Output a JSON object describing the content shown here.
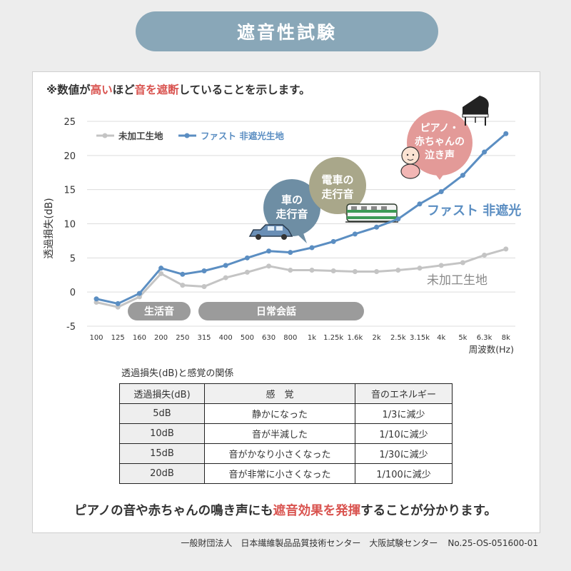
{
  "title": "遮音性試験",
  "note": {
    "prefix": "※数値が",
    "hl1": "高い",
    "mid1": "ほど",
    "hl2": "音を遮断",
    "suffix": "していることを示します。"
  },
  "chart_data": {
    "type": "line",
    "x_categories": [
      "100",
      "125",
      "160",
      "200",
      "250",
      "315",
      "400",
      "500",
      "630",
      "800",
      "1k",
      "1.25k",
      "1.6k",
      "2k",
      "2.5k",
      "3.15k",
      "4k",
      "5k",
      "6.3k",
      "8k"
    ],
    "xlabel": "周波数(Hz)",
    "ylabel": "透過損失(dB)",
    "yticks": [
      "25",
      "20",
      "15",
      "10",
      "5",
      "0",
      "-5"
    ],
    "ylim": [
      -5,
      25
    ],
    "legend_placement": "top-left",
    "series": [
      {
        "name": "未加工生地",
        "end_label": "未加工生地",
        "color": "#c4c4c4",
        "values": [
          -1.5,
          -2.2,
          -0.7,
          2.7,
          1.0,
          0.8,
          2.1,
          2.9,
          3.8,
          3.2,
          3.2,
          3.1,
          3.0,
          3.0,
          3.2,
          3.5,
          3.9,
          4.3,
          5.4,
          6.3
        ]
      },
      {
        "name": "ファスト 非遮光生地",
        "end_label": "ファスト 非遮光",
        "color": "#5b8ec2",
        "values": [
          -1.0,
          -1.7,
          -0.2,
          3.5,
          2.6,
          3.1,
          3.9,
          5.0,
          6.0,
          5.8,
          6.5,
          7.4,
          8.5,
          9.5,
          10.7,
          12.9,
          14.7,
          17.1,
          20.5,
          23.2
        ]
      }
    ],
    "bands": [
      "生活音",
      "日常会話"
    ],
    "bubbles": [
      {
        "text": [
          "車の",
          "走行音"
        ],
        "color": "#6e8ea4"
      },
      {
        "text": [
          "電車の",
          "走行音"
        ],
        "color": "#a9a78a"
      },
      {
        "text": [
          "ピアノ・",
          "赤ちゃんの",
          "泣き声"
        ],
        "color": "#e39a98"
      }
    ]
  },
  "table": {
    "caption": "透過損失(dB)と感覚の関係",
    "headers": [
      "透過損失(dB)",
      "感　覚",
      "音のエネルギー"
    ],
    "rows": [
      [
        "5dB",
        "静かになった",
        "1/3に減少"
      ],
      [
        "10dB",
        "音が半減した",
        "1/10に減少"
      ],
      [
        "15dB",
        "音がかなり小さくなった",
        "1/30に減少"
      ],
      [
        "20dB",
        "音が非常に小さくなった",
        "1/100に減少"
      ]
    ]
  },
  "bottom_message": {
    "prefix": "ピアノの音や赤ちゃんの鳴き声にも",
    "hl": "遮音効果を発揮",
    "suffix": "することが分かります。"
  },
  "footer": {
    "org": "一般財団法人　日本繊維製品品質技術センター　大阪試験センター",
    "number": "No.25-OS-051600-01"
  }
}
